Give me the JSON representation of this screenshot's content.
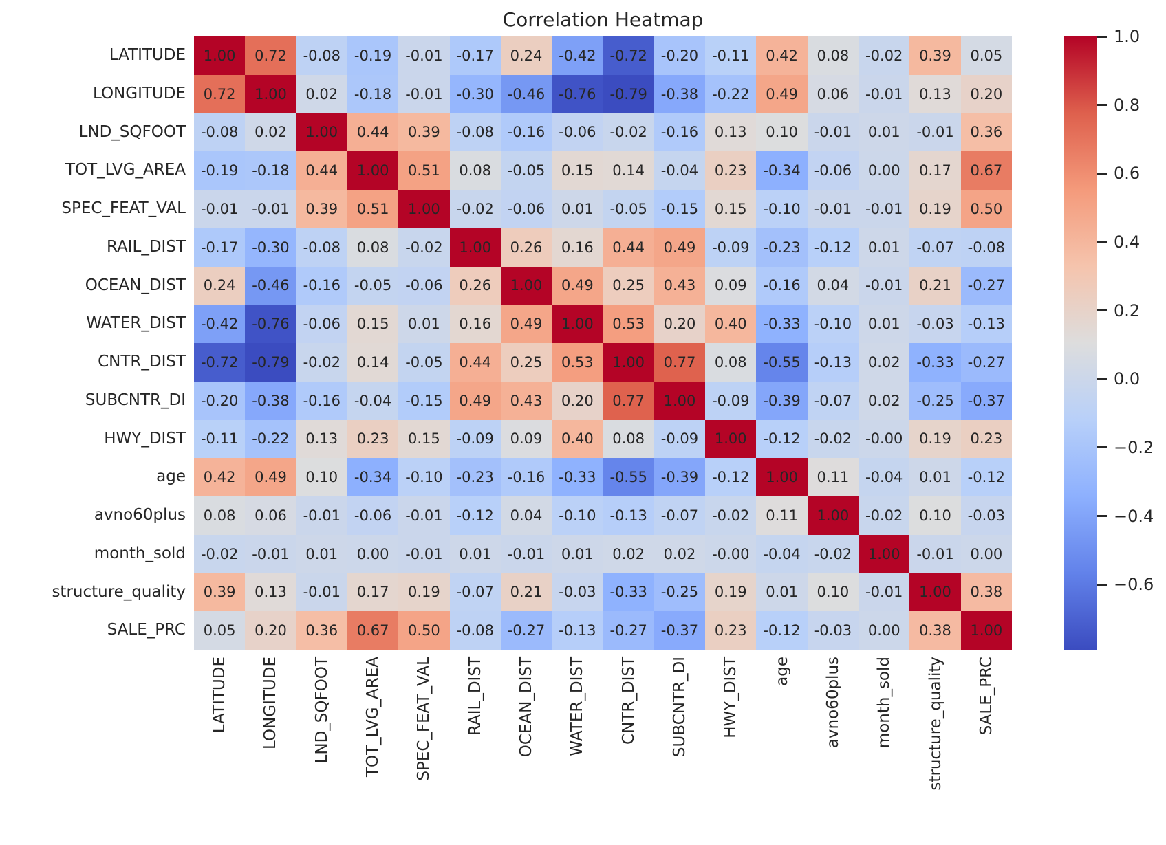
{
  "title": "Correlation Heatmap",
  "chart_data": {
    "type": "heatmap",
    "title": "Correlation Heatmap",
    "labels": [
      "LATITUDE",
      "LONGITUDE",
      "LND_SQFOOT",
      "TOT_LVG_AREA",
      "SPEC_FEAT_VAL",
      "RAIL_DIST",
      "OCEAN_DIST",
      "WATER_DIST",
      "CNTR_DIST",
      "SUBCNTR_DI",
      "HWY_DIST",
      "age",
      "avno60plus",
      "month_sold",
      "structure_quality",
      "SALE_PRC"
    ],
    "matrix": [
      [
        "1.00",
        "0.72",
        "-0.08",
        "-0.19",
        "-0.01",
        "-0.17",
        "0.24",
        "-0.42",
        "-0.72",
        "-0.20",
        "-0.11",
        "0.42",
        "0.08",
        "-0.02",
        "0.39",
        "0.05"
      ],
      [
        "0.72",
        "1.00",
        "0.02",
        "-0.18",
        "-0.01",
        "-0.30",
        "-0.46",
        "-0.76",
        "-0.79",
        "-0.38",
        "-0.22",
        "0.49",
        "0.06",
        "-0.01",
        "0.13",
        "0.20"
      ],
      [
        "-0.08",
        "0.02",
        "1.00",
        "0.44",
        "0.39",
        "-0.08",
        "-0.16",
        "-0.06",
        "-0.02",
        "-0.16",
        "0.13",
        "0.10",
        "-0.01",
        "0.01",
        "-0.01",
        "0.36"
      ],
      [
        "-0.19",
        "-0.18",
        "0.44",
        "1.00",
        "0.51",
        "0.08",
        "-0.05",
        "0.15",
        "0.14",
        "-0.04",
        "0.23",
        "-0.34",
        "-0.06",
        "0.00",
        "0.17",
        "0.67"
      ],
      [
        "-0.01",
        "-0.01",
        "0.39",
        "0.51",
        "1.00",
        "-0.02",
        "-0.06",
        "0.01",
        "-0.05",
        "-0.15",
        "0.15",
        "-0.10",
        "-0.01",
        "-0.01",
        "0.19",
        "0.50"
      ],
      [
        "-0.17",
        "-0.30",
        "-0.08",
        "0.08",
        "-0.02",
        "1.00",
        "0.26",
        "0.16",
        "0.44",
        "0.49",
        "-0.09",
        "-0.23",
        "-0.12",
        "0.01",
        "-0.07",
        "-0.08"
      ],
      [
        "0.24",
        "-0.46",
        "-0.16",
        "-0.05",
        "-0.06",
        "0.26",
        "1.00",
        "0.49",
        "0.25",
        "0.43",
        "0.09",
        "-0.16",
        "0.04",
        "-0.01",
        "0.21",
        "-0.27"
      ],
      [
        "-0.42",
        "-0.76",
        "-0.06",
        "0.15",
        "0.01",
        "0.16",
        "0.49",
        "1.00",
        "0.53",
        "0.20",
        "0.40",
        "-0.33",
        "-0.10",
        "0.01",
        "-0.03",
        "-0.13"
      ],
      [
        "-0.72",
        "-0.79",
        "-0.02",
        "0.14",
        "-0.05",
        "0.44",
        "0.25",
        "0.53",
        "1.00",
        "0.77",
        "0.08",
        "-0.55",
        "-0.13",
        "0.02",
        "-0.33",
        "-0.27"
      ],
      [
        "-0.20",
        "-0.38",
        "-0.16",
        "-0.04",
        "-0.15",
        "0.49",
        "0.43",
        "0.20",
        "0.77",
        "1.00",
        "-0.09",
        "-0.39",
        "-0.07",
        "0.02",
        "-0.25",
        "-0.37"
      ],
      [
        "-0.11",
        "-0.22",
        "0.13",
        "0.23",
        "0.15",
        "-0.09",
        "0.09",
        "0.40",
        "0.08",
        "-0.09",
        "1.00",
        "-0.12",
        "-0.02",
        "-0.00",
        "0.19",
        "0.23"
      ],
      [
        "0.42",
        "0.49",
        "0.10",
        "-0.34",
        "-0.10",
        "-0.23",
        "-0.16",
        "-0.33",
        "-0.55",
        "-0.39",
        "-0.12",
        "1.00",
        "0.11",
        "-0.04",
        "0.01",
        "-0.12"
      ],
      [
        "0.08",
        "0.06",
        "-0.01",
        "-0.06",
        "-0.01",
        "-0.12",
        "0.04",
        "-0.10",
        "-0.13",
        "-0.07",
        "-0.02",
        "0.11",
        "1.00",
        "-0.02",
        "0.10",
        "-0.03"
      ],
      [
        "-0.02",
        "-0.01",
        "0.01",
        "0.00",
        "-0.01",
        "0.01",
        "-0.01",
        "0.01",
        "0.02",
        "0.02",
        "-0.00",
        "-0.04",
        "-0.02",
        "1.00",
        "-0.01",
        "0.00"
      ],
      [
        "0.39",
        "0.13",
        "-0.01",
        "0.17",
        "0.19",
        "-0.07",
        "0.21",
        "-0.03",
        "-0.33",
        "-0.25",
        "0.19",
        "0.01",
        "0.10",
        "-0.01",
        "1.00",
        "0.38"
      ],
      [
        "0.05",
        "0.20",
        "0.36",
        "0.67",
        "0.50",
        "-0.08",
        "-0.27",
        "-0.13",
        "-0.27",
        "-0.37",
        "0.23",
        "-0.12",
        "-0.03",
        "0.00",
        "0.38",
        "1.00"
      ]
    ],
    "vmin": -0.79,
    "vmax": 1.0,
    "colormap": "coolwarm",
    "colormap_anchors": [
      "#3B4CC0",
      "#6282EA",
      "#8DB0FE",
      "#B8D0F9",
      "#DDDDDD",
      "#F5C4AD",
      "#F49A7B",
      "#DE604D",
      "#B40426"
    ],
    "colorbar_ticks": [
      {
        "label": "1.0",
        "value": 1.0
      },
      {
        "label": "0.8",
        "value": 0.8
      },
      {
        "label": "0.6",
        "value": 0.6
      },
      {
        "label": "0.4",
        "value": 0.4
      },
      {
        "label": "0.2",
        "value": 0.2
      },
      {
        "label": "0.0",
        "value": 0.0
      },
      {
        "label": "−0.2",
        "value": -0.2
      },
      {
        "label": "−0.4",
        "value": -0.4
      },
      {
        "label": "−0.6",
        "value": -0.6
      }
    ],
    "annotation_color": "#262626",
    "legend_position": "right",
    "grid": false
  }
}
